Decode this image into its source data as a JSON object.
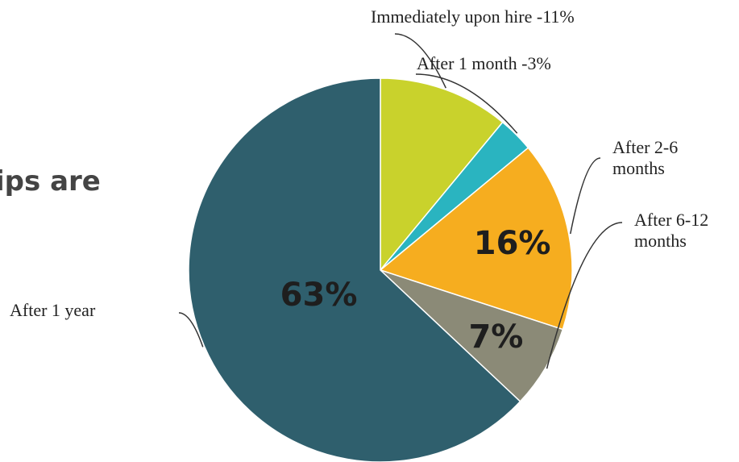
{
  "title": "ips are",
  "chart_data": {
    "type": "pie",
    "categories": [
      "Immediately upon hire -11%",
      "After 1 month -3%",
      "After 2-6 months",
      "After 6-12 months",
      "After 1 year"
    ],
    "values": [
      11,
      3,
      16,
      7,
      63
    ],
    "value_labels": [
      null,
      null,
      "16%",
      "7%",
      "63%"
    ],
    "colors": [
      "#c9d22c",
      "#2ab4c0",
      "#f6ad1f",
      "#8b8a77",
      "#2f5f6d"
    ]
  }
}
